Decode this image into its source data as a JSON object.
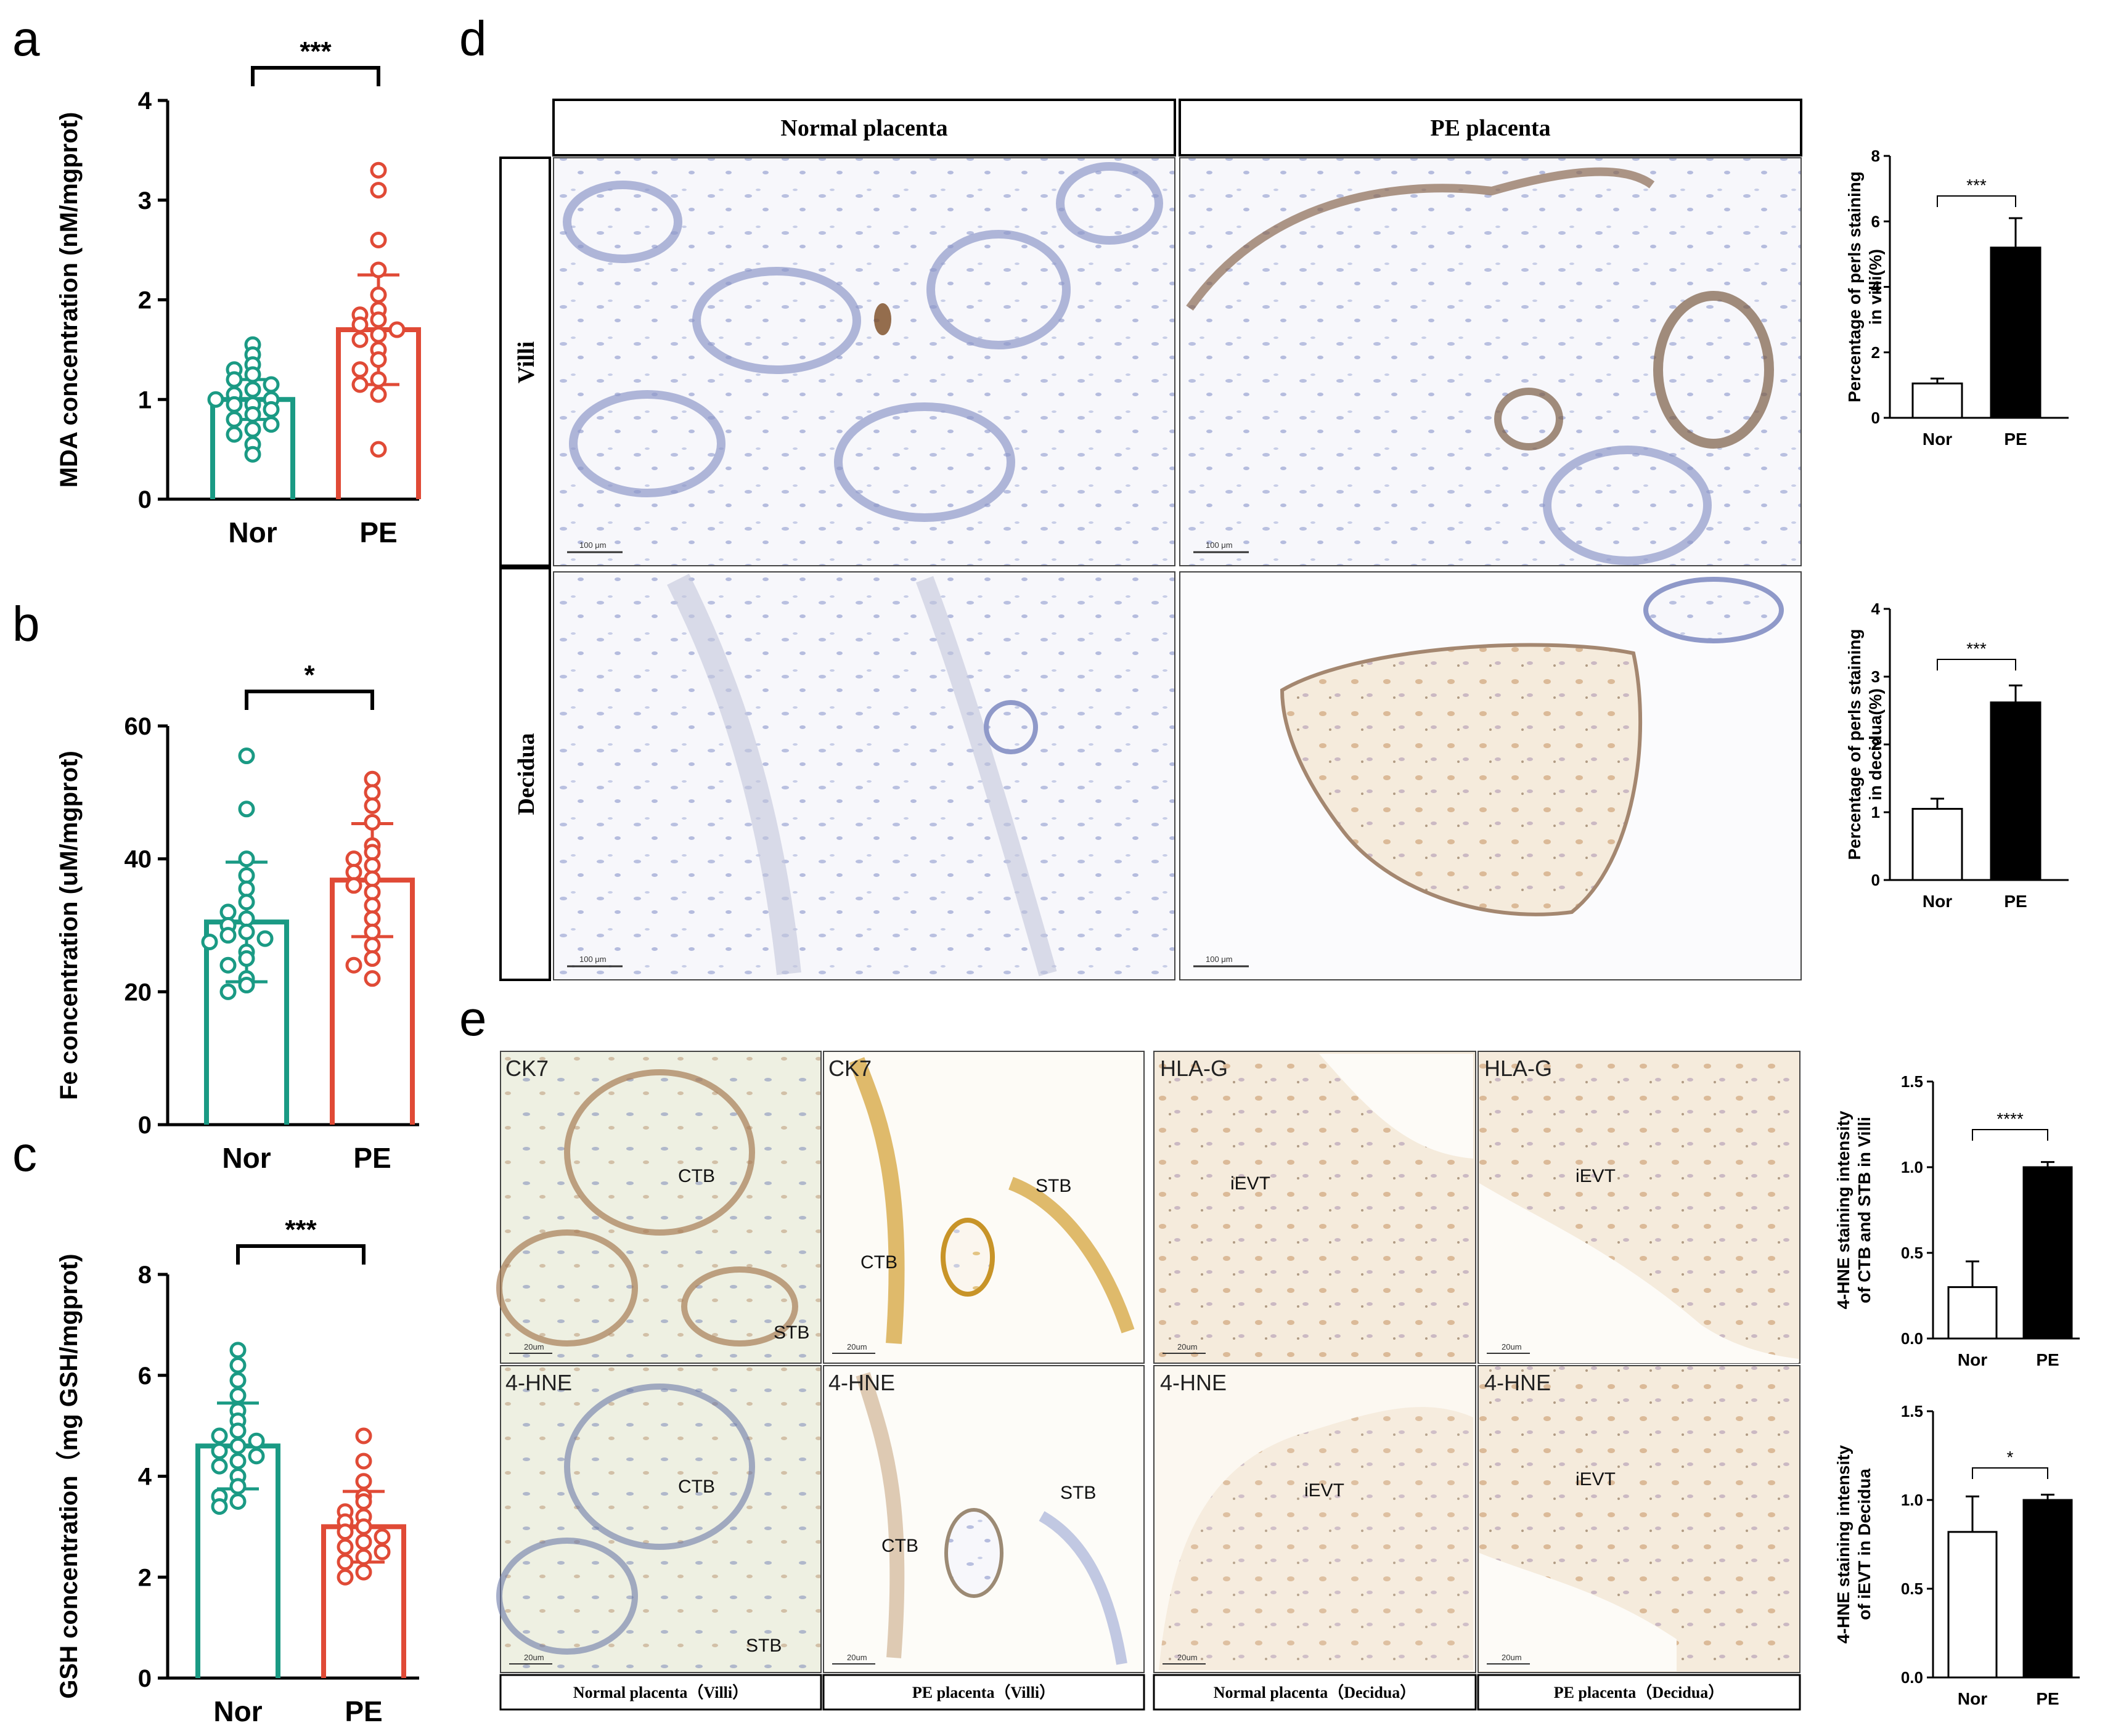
{
  "panel_letters": {
    "a": "a",
    "b": "b",
    "c": "c",
    "d": "d",
    "e": "e"
  },
  "colors": {
    "nor": "#1a9a84",
    "pe": "#e04a36",
    "black": "#000000",
    "white": "#ffffff"
  },
  "chart_data": [
    {
      "id": "a",
      "type": "bar",
      "categories": [
        "Nor",
        "PE"
      ],
      "values": [
        1.0,
        1.7
      ],
      "errors": [
        0.2,
        0.55
      ],
      "points": [
        [
          1.55,
          1.45,
          1.35,
          1.3,
          1.25,
          1.2,
          1.15,
          1.1,
          1.05,
          1.0,
          1.0,
          0.95,
          0.95,
          0.9,
          0.85,
          0.8,
          0.75,
          0.7,
          0.65,
          0.55,
          0.45
        ],
        [
          3.3,
          3.1,
          2.6,
          2.3,
          2.05,
          1.9,
          1.85,
          1.8,
          1.75,
          1.7,
          1.65,
          1.6,
          1.5,
          1.4,
          1.3,
          1.2,
          1.15,
          1.05,
          0.5
        ]
      ],
      "ylabel": "MDA concentration (nM/mgprot)",
      "ylim": [
        0,
        4
      ],
      "yticks": [
        "0",
        "1",
        "2",
        "3",
        "4"
      ],
      "significance": "***"
    },
    {
      "id": "b",
      "type": "bar",
      "categories": [
        "Nor",
        "PE"
      ],
      "values": [
        30.5,
        36.8
      ],
      "errors": [
        9.0,
        8.5
      ],
      "points": [
        [
          55.5,
          47.5,
          40.0,
          37.5,
          35.5,
          33.5,
          32.0,
          31.0,
          30.0,
          29.0,
          28.5,
          28.0,
          27.5,
          26.0,
          25.0,
          24.0,
          22.0,
          21.0,
          20.0
        ],
        [
          52.0,
          50.0,
          48.0,
          45.5,
          42.0,
          41.0,
          40.0,
          39.0,
          38.0,
          37.0,
          36.0,
          35.0,
          33.0,
          31.0,
          29.0,
          27.0,
          25.0,
          24.0,
          22.0
        ]
      ],
      "ylabel": "Fe concentration (uM/mgprot)",
      "ylim": [
        0,
        60
      ],
      "yticks": [
        "0",
        "20",
        "40",
        "60"
      ],
      "significance": "*"
    },
    {
      "id": "c",
      "type": "bar",
      "categories": [
        "Nor",
        "PE"
      ],
      "values": [
        4.6,
        3.0
      ],
      "errors": [
        0.85,
        0.7
      ],
      "points": [
        [
          6.5,
          6.2,
          5.9,
          5.6,
          5.3,
          5.1,
          4.9,
          4.8,
          4.7,
          4.6,
          4.5,
          4.4,
          4.3,
          4.2,
          4.0,
          3.8,
          3.6,
          3.5,
          3.4
        ],
        [
          4.8,
          4.3,
          3.9,
          3.6,
          3.5,
          3.3,
          3.2,
          3.1,
          3.0,
          2.9,
          2.8,
          2.7,
          2.6,
          2.5,
          2.4,
          2.3,
          2.1,
          2.0
        ]
      ],
      "ylabel": "GSH concentration（mg GSH/mgprot)",
      "ylim": [
        0,
        8
      ],
      "yticks": [
        "0",
        "2",
        "4",
        "6",
        "8"
      ],
      "significance": "***"
    },
    {
      "id": "d1",
      "type": "bar",
      "categories": [
        "Nor",
        "PE"
      ],
      "values": [
        1.05,
        5.2
      ],
      "errors": [
        0.15,
        0.9
      ],
      "ylabel": [
        "Percentage of perls staining",
        "in villi(%)"
      ],
      "ylim": [
        0,
        8
      ],
      "yticks": [
        "0",
        "2",
        "4",
        "6",
        "8"
      ],
      "significance": "***"
    },
    {
      "id": "d2",
      "type": "bar",
      "categories": [
        "Nor",
        "PE"
      ],
      "values": [
        1.05,
        2.62
      ],
      "errors": [
        0.15,
        0.25
      ],
      "ylabel": [
        "Percentage of perls staining",
        "in decidua(%)"
      ],
      "ylim": [
        0,
        4
      ],
      "yticks": [
        "0",
        "1",
        "2",
        "3",
        "4"
      ],
      "significance": "***"
    },
    {
      "id": "e1",
      "type": "bar",
      "categories": [
        "Nor",
        "PE"
      ],
      "values": [
        0.3,
        1.0
      ],
      "errors": [
        0.15,
        0.03
      ],
      "ylabel": [
        "4-HNE staining intensity",
        "of CTB and STB in Villi"
      ],
      "ylim": [
        0,
        1.5
      ],
      "yticks": [
        "0.0",
        "0.5",
        "1.0",
        "1.5"
      ],
      "significance": "****"
    },
    {
      "id": "e2",
      "type": "bar",
      "categories": [
        "Nor",
        "PE"
      ],
      "values": [
        0.82,
        1.0
      ],
      "errors": [
        0.2,
        0.03
      ],
      "ylabel": [
        "4-HNE staining intensity",
        "of iEVT in Decidua"
      ],
      "ylim": [
        0,
        1.5
      ],
      "yticks": [
        "0.0",
        "0.5",
        "1.0",
        "1.5"
      ],
      "significance": "*"
    }
  ],
  "panel_d": {
    "col_headers": [
      "Normal placenta",
      "PE placenta"
    ],
    "row_headers": [
      "Villi",
      "Decidua"
    ],
    "scale_bar": "100 μm"
  },
  "panel_e": {
    "top_labels": [
      "CK7",
      "CK7",
      "HLA-G",
      "HLA-G"
    ],
    "bottom_labels": [
      "4-HNE",
      "4-HNE",
      "4-HNE",
      "4-HNE"
    ],
    "captions": [
      "Normal placenta（Villi）",
      "PE placenta（Villi）",
      "Normal placenta（Decidua）",
      "PE placenta（Decidua）"
    ],
    "arrows": {
      "ctb": "CTB",
      "stb": "STB",
      "ievt": "iEVT"
    },
    "scale_bar": "20um"
  }
}
